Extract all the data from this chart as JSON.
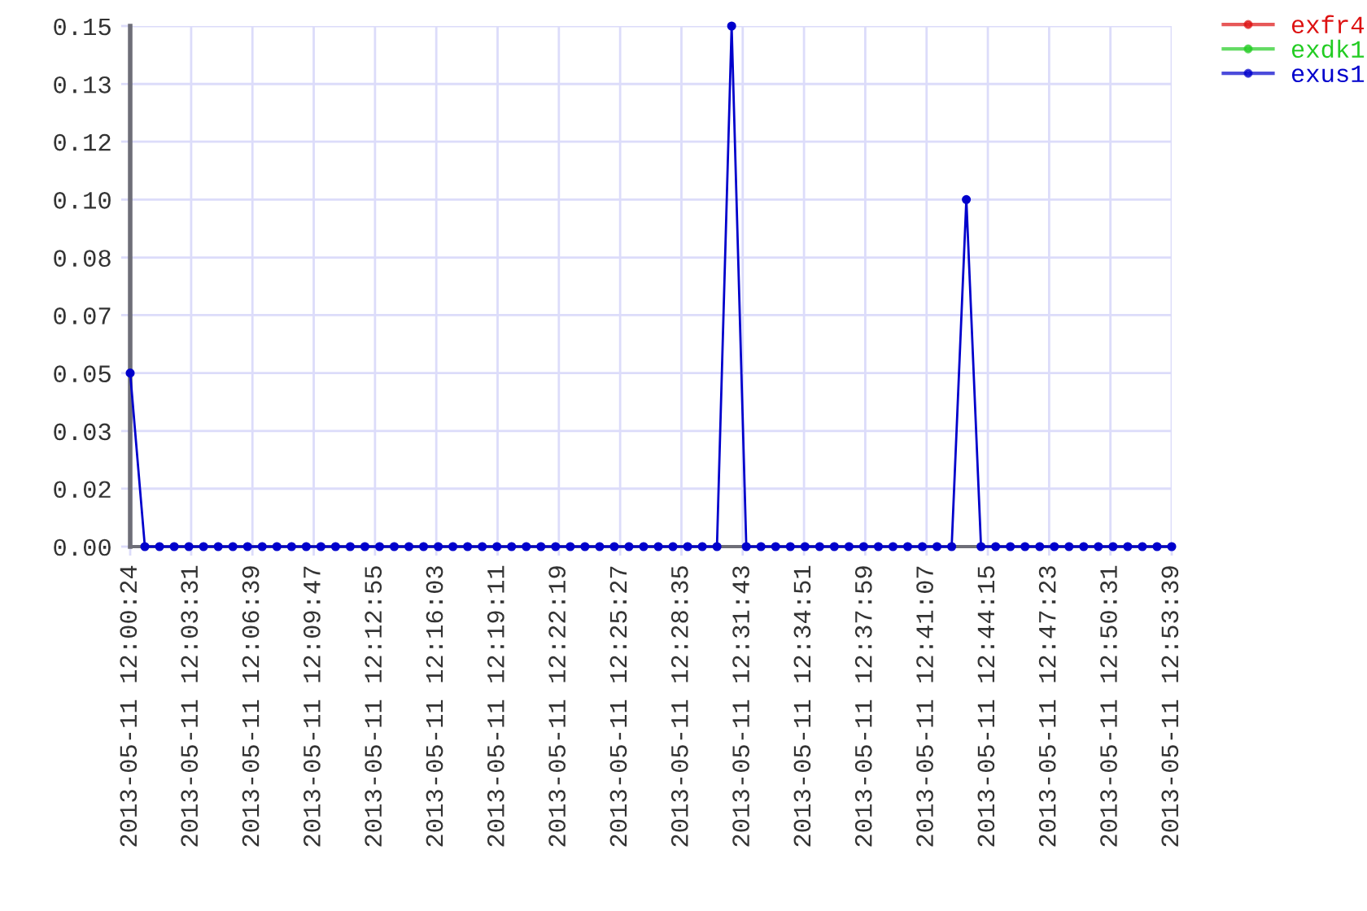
{
  "chart_data": {
    "type": "line",
    "x": [
      "2013-05-11T12:00:24",
      "2013-05-11T12:01:09",
      "2013-05-11T12:01:54",
      "2013-05-11T12:02:39",
      "2013-05-11T12:03:24",
      "2013-05-11T12:04:09",
      "2013-05-11T12:04:54",
      "2013-05-11T12:05:39",
      "2013-05-11T12:06:24",
      "2013-05-11T12:07:09",
      "2013-05-11T12:07:54",
      "2013-05-11T12:08:39",
      "2013-05-11T12:09:24",
      "2013-05-11T12:10:09",
      "2013-05-11T12:10:54",
      "2013-05-11T12:11:39",
      "2013-05-11T12:12:24",
      "2013-05-11T12:13:09",
      "2013-05-11T12:13:54",
      "2013-05-11T12:14:39",
      "2013-05-11T12:15:24",
      "2013-05-11T12:16:09",
      "2013-05-11T12:16:54",
      "2013-05-11T12:17:39",
      "2013-05-11T12:18:24",
      "2013-05-11T12:19:09",
      "2013-05-11T12:19:54",
      "2013-05-11T12:20:39",
      "2013-05-11T12:21:24",
      "2013-05-11T12:22:09",
      "2013-05-11T12:22:54",
      "2013-05-11T12:23:39",
      "2013-05-11T12:24:24",
      "2013-05-11T12:25:09",
      "2013-05-11T12:25:54",
      "2013-05-11T12:26:39",
      "2013-05-11T12:27:24",
      "2013-05-11T12:28:09",
      "2013-05-11T12:28:54",
      "2013-05-11T12:29:39",
      "2013-05-11T12:30:24",
      "2013-05-11T12:31:09",
      "2013-05-11T12:31:54",
      "2013-05-11T12:32:39",
      "2013-05-11T12:33:24",
      "2013-05-11T12:34:09",
      "2013-05-11T12:34:54",
      "2013-05-11T12:35:39",
      "2013-05-11T12:36:24",
      "2013-05-11T12:37:09",
      "2013-05-11T12:37:54",
      "2013-05-11T12:38:39",
      "2013-05-11T12:39:24",
      "2013-05-11T12:40:09",
      "2013-05-11T12:40:54",
      "2013-05-11T12:41:39",
      "2013-05-11T12:42:24",
      "2013-05-11T12:43:09",
      "2013-05-11T12:43:54",
      "2013-05-11T12:44:39",
      "2013-05-11T12:45:24",
      "2013-05-11T12:46:09",
      "2013-05-11T12:46:54",
      "2013-05-11T12:47:39",
      "2013-05-11T12:48:24",
      "2013-05-11T12:49:09",
      "2013-05-11T12:49:54",
      "2013-05-11T12:50:39",
      "2013-05-11T12:51:24",
      "2013-05-11T12:52:09",
      "2013-05-11T12:52:54",
      "2013-05-11T12:53:39"
    ],
    "series": [
      {
        "name": "exfr4",
        "color": "#dd1111",
        "values": [
          null,
          null,
          null,
          null,
          null,
          null,
          null,
          null,
          null,
          null,
          null,
          null,
          null,
          null,
          null,
          null,
          null,
          null,
          null,
          null,
          null,
          null,
          null,
          null,
          null,
          null,
          null,
          null,
          null,
          null,
          null,
          null,
          null,
          null,
          null,
          null,
          null,
          null,
          null,
          null,
          null,
          null,
          null,
          null,
          null,
          null,
          null,
          null,
          null,
          null,
          null,
          null,
          null,
          null,
          null,
          null,
          null,
          null,
          null,
          null,
          null,
          null,
          null,
          null,
          null,
          null,
          null,
          null,
          null,
          null,
          null,
          null
        ]
      },
      {
        "name": "exdk1",
        "color": "#22cc22",
        "values": [
          null,
          null,
          null,
          null,
          null,
          null,
          null,
          null,
          null,
          null,
          null,
          null,
          null,
          null,
          null,
          null,
          null,
          null,
          null,
          null,
          null,
          null,
          null,
          null,
          null,
          null,
          null,
          null,
          null,
          null,
          null,
          null,
          null,
          null,
          null,
          null,
          null,
          null,
          null,
          null,
          null,
          null,
          null,
          null,
          null,
          null,
          null,
          null,
          null,
          null,
          null,
          null,
          null,
          null,
          null,
          null,
          null,
          null,
          null,
          null,
          null,
          null,
          null,
          null,
          null,
          null,
          null,
          null,
          null,
          null,
          null,
          null
        ]
      },
      {
        "name": "exus1",
        "color": "#0000cc",
        "values": [
          0.05,
          0,
          0,
          0,
          0,
          0,
          0,
          0,
          0,
          0,
          0,
          0,
          0,
          0,
          0,
          0,
          0,
          0,
          0,
          0,
          0,
          0,
          0,
          0,
          0,
          0,
          0,
          0,
          0,
          0,
          0,
          0,
          0,
          0,
          0,
          0,
          0,
          0,
          0,
          0,
          0,
          0.15,
          0,
          0,
          0,
          0,
          0,
          0,
          0,
          0,
          0,
          0,
          0,
          0,
          0,
          0,
          0,
          0.1,
          0,
          0,
          0,
          0,
          0,
          0,
          0,
          0,
          0,
          0,
          0,
          0,
          0,
          0
        ]
      }
    ],
    "xlim": [
      "2013-05-11T12:00:24",
      "2013-05-11T12:53:39"
    ],
    "xticks": [
      {
        "value": "2013-05-11T12:00:24",
        "label": "2013-05-11 12:00:24"
      },
      {
        "value": "2013-05-11T12:03:31",
        "label": "2013-05-11 12:03:31"
      },
      {
        "value": "2013-05-11T12:06:39",
        "label": "2013-05-11 12:06:39"
      },
      {
        "value": "2013-05-11T12:09:47",
        "label": "2013-05-11 12:09:47"
      },
      {
        "value": "2013-05-11T12:12:55",
        "label": "2013-05-11 12:12:55"
      },
      {
        "value": "2013-05-11T12:16:03",
        "label": "2013-05-11 12:16:03"
      },
      {
        "value": "2013-05-11T12:19:11",
        "label": "2013-05-11 12:19:11"
      },
      {
        "value": "2013-05-11T12:22:19",
        "label": "2013-05-11 12:22:19"
      },
      {
        "value": "2013-05-11T12:25:27",
        "label": "2013-05-11 12:25:27"
      },
      {
        "value": "2013-05-11T12:28:35",
        "label": "2013-05-11 12:28:35"
      },
      {
        "value": "2013-05-11T12:31:43",
        "label": "2013-05-11 12:31:43"
      },
      {
        "value": "2013-05-11T12:34:51",
        "label": "2013-05-11 12:34:51"
      },
      {
        "value": "2013-05-11T12:37:59",
        "label": "2013-05-11 12:37:59"
      },
      {
        "value": "2013-05-11T12:41:07",
        "label": "2013-05-11 12:41:07"
      },
      {
        "value": "2013-05-11T12:44:15",
        "label": "2013-05-11 12:44:15"
      },
      {
        "value": "2013-05-11T12:47:23",
        "label": "2013-05-11 12:47:23"
      },
      {
        "value": "2013-05-11T12:50:31",
        "label": "2013-05-11 12:50:31"
      },
      {
        "value": "2013-05-11T12:53:39",
        "label": "2013-05-11 12:53:39"
      }
    ],
    "ylim": [
      0,
      0.15
    ],
    "yticks": [
      {
        "value": 0,
        "label": "0.00"
      },
      {
        "value": 0.0167,
        "label": "0.02"
      },
      {
        "value": 0.0333,
        "label": "0.03"
      },
      {
        "value": 0.05,
        "label": "0.05"
      },
      {
        "value": 0.0667,
        "label": "0.07"
      },
      {
        "value": 0.0833,
        "label": "0.08"
      },
      {
        "value": 0.1,
        "label": "0.10"
      },
      {
        "value": 0.1167,
        "label": "0.12"
      },
      {
        "value": 0.1333,
        "label": "0.13"
      },
      {
        "value": 0.15,
        "label": "0.15"
      }
    ],
    "grid": true,
    "legend": "top right",
    "marker": "circle",
    "line_style": "solid"
  }
}
